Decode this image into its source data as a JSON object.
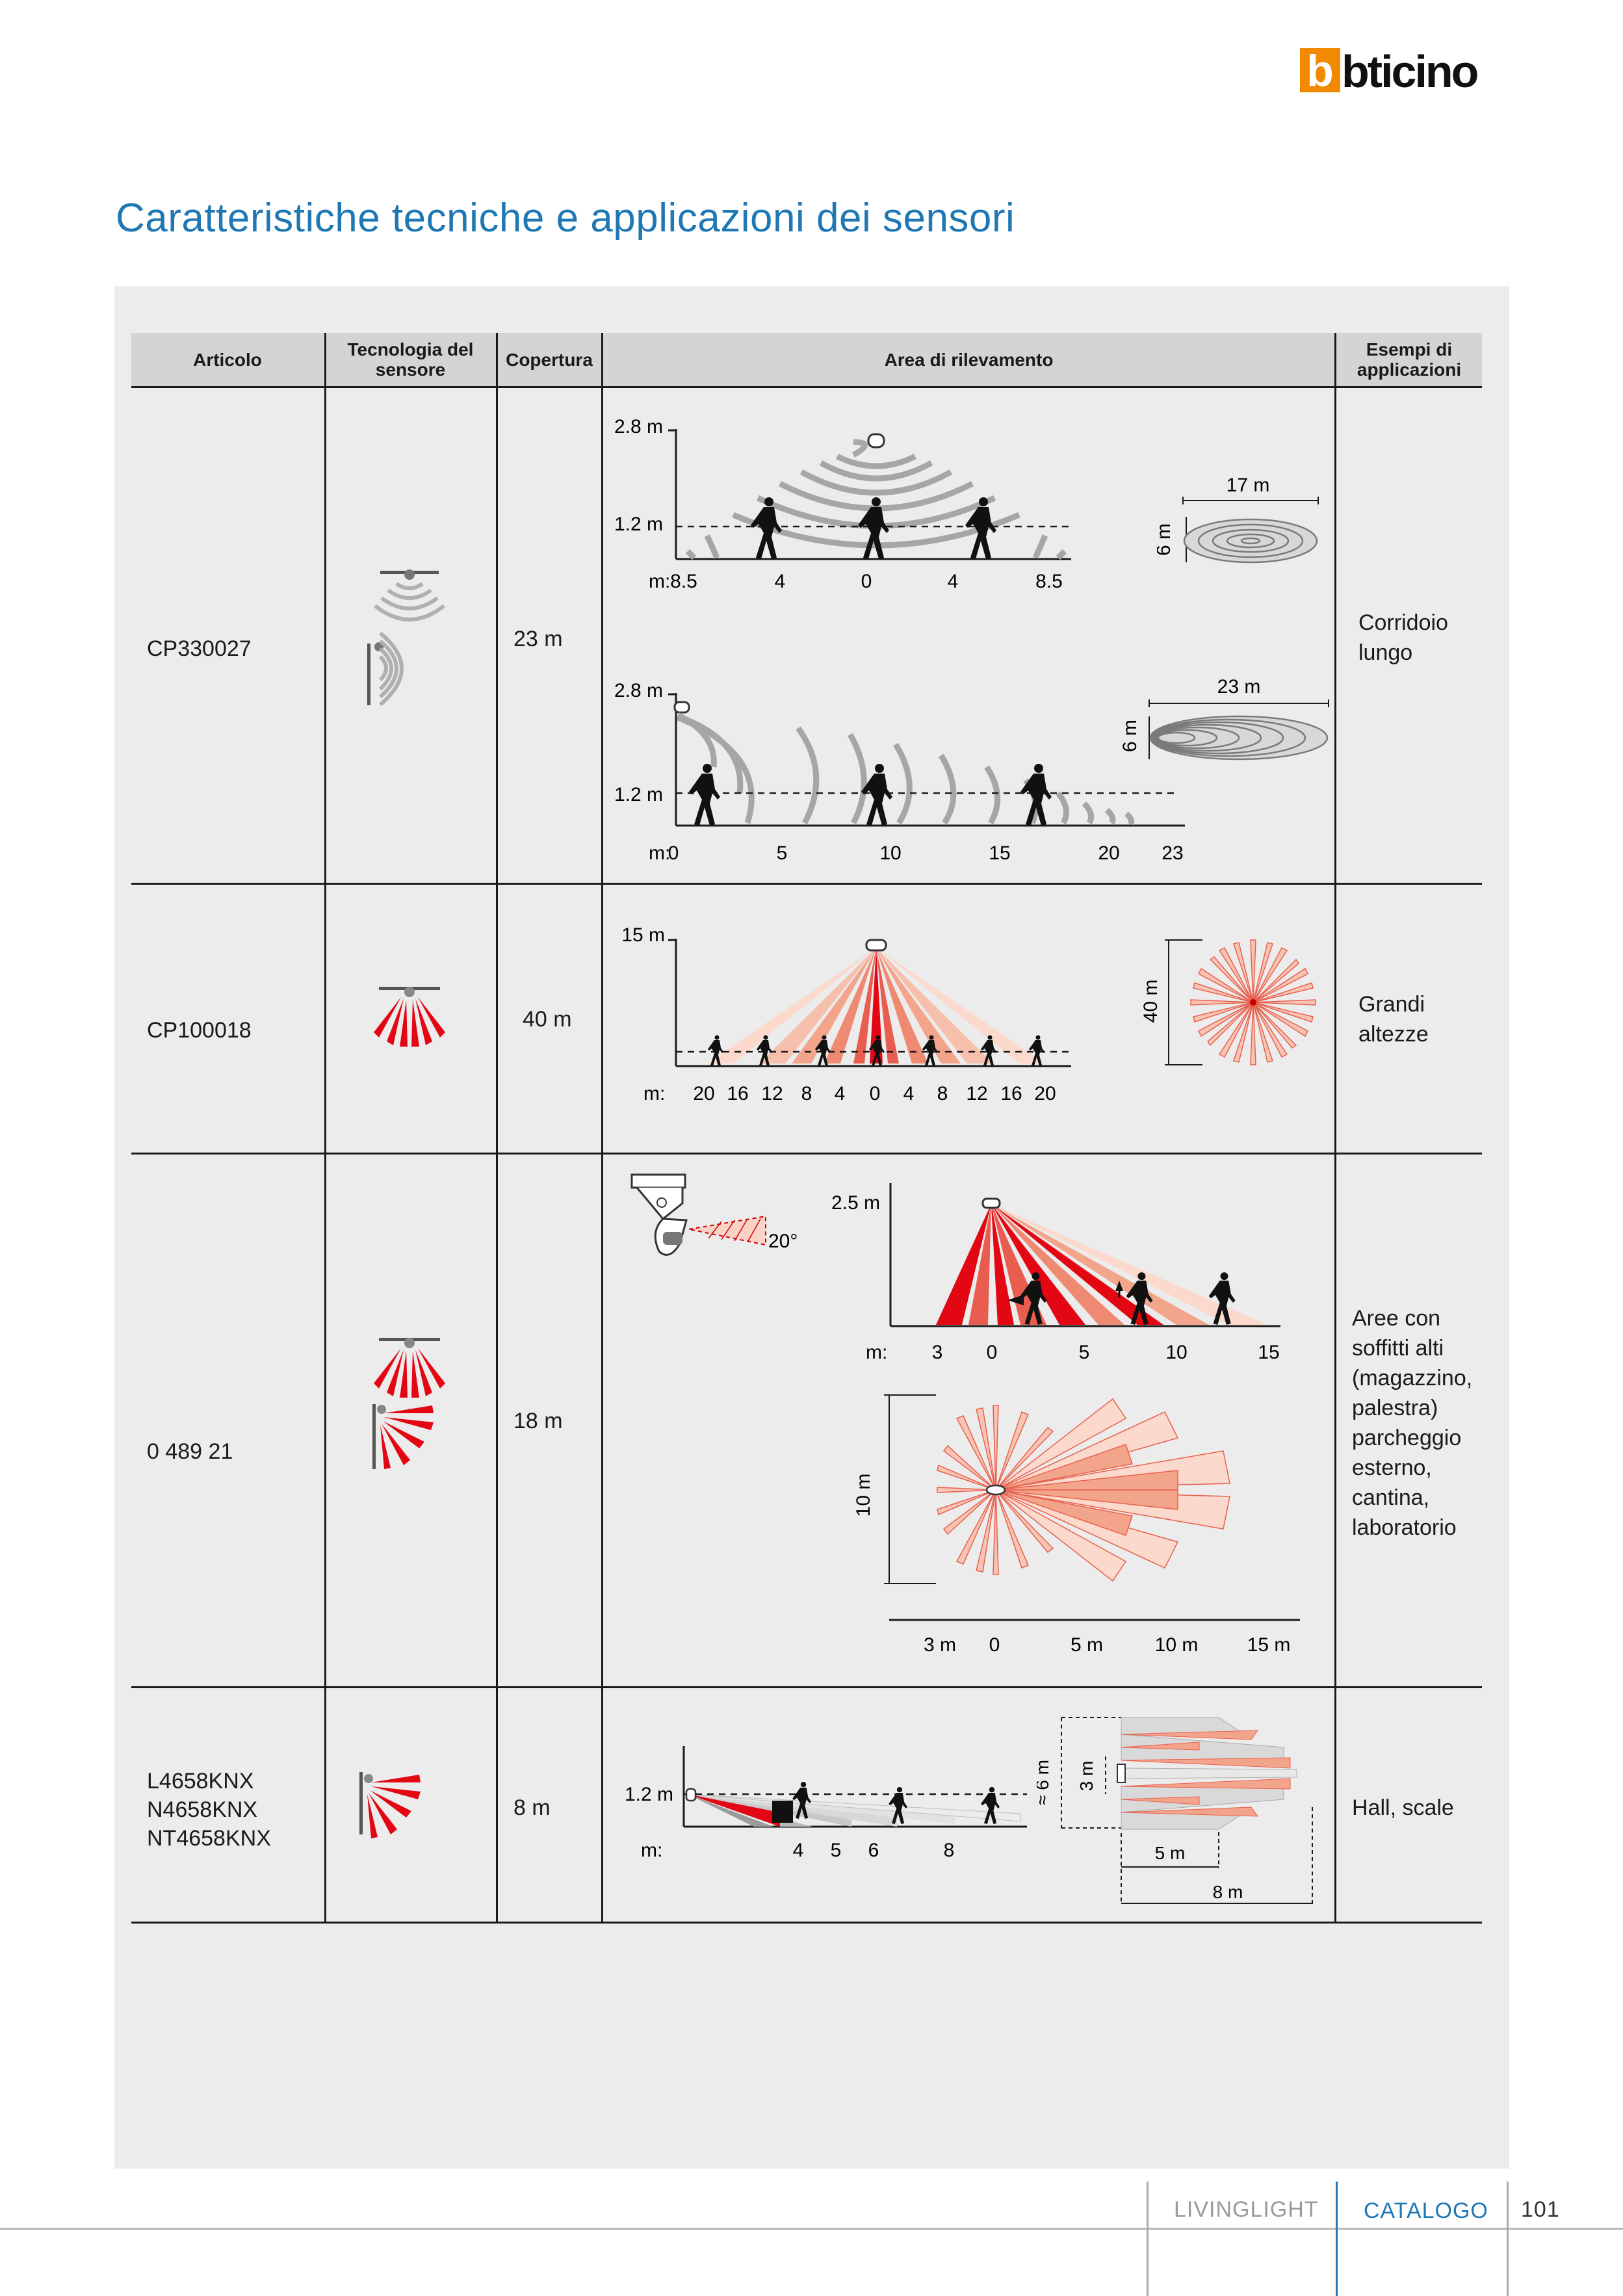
{
  "brand": {
    "logo_text": "bticino"
  },
  "page_title": "Caratteristiche tecniche e applicazioni dei sensori",
  "table": {
    "headers": {
      "articolo": "Articolo",
      "tecnologia": "Tecnologia del sensore",
      "copertura": "Copertura",
      "area": "Area di rilevamento",
      "esempi": "Esempi di applicazioni"
    },
    "rows": [
      {
        "articolo": "CP330027",
        "copertura": "23 m",
        "esempi": "Corridoio lungo",
        "technology_icon": "ultrasonic-sensor-icon"
      },
      {
        "articolo": "CP100018",
        "copertura": "40 m",
        "esempi": "Grandi altezze",
        "technology_icon": "pir-ceiling-sensor-icon"
      },
      {
        "articolo": "0 489 21",
        "copertura": "18 m",
        "esempi": "Aree con soffitti alti (magazzino, palestra) parcheggio esterno, cantina, laboratorio",
        "technology_icon": "pir-dual-sensor-icon"
      },
      {
        "articolo": "L4658KNX N4658KNX NT4658KNX",
        "copertura": "8 m",
        "esempi": "Hall, scale",
        "technology_icon": "pir-wall-sensor-icon"
      }
    ]
  },
  "diagrams": {
    "r1a": {
      "h_top": "2.8 m",
      "h_mid": "1.2 m",
      "axis_prefix": "m:",
      "ticks": [
        "8.5",
        "4",
        "0",
        "4",
        "8.5"
      ],
      "plan_width": "17 m",
      "plan_depth": "6 m"
    },
    "r1b": {
      "h_top": "2.8 m",
      "h_mid": "1.2 m",
      "axis_prefix": "m:",
      "ticks": [
        "0",
        "5",
        "10",
        "15",
        "20",
        "23"
      ],
      "plan_width": "23 m",
      "plan_depth": "6 m"
    },
    "r2": {
      "h_top": "15 m",
      "axis_prefix": "m:",
      "ticks": [
        "20",
        "16",
        "12",
        "8",
        "4",
        "0",
        "4",
        "8",
        "12",
        "16",
        "20"
      ],
      "plan_diam": "40 m"
    },
    "r3": {
      "angle": "20°",
      "h_top": "2.5 m",
      "axis_prefix": "m:",
      "ticks": [
        "3",
        "0",
        "5",
        "10",
        "15"
      ],
      "plan_depth": "10 m",
      "plan_ticks": [
        "3 m",
        "0",
        "5 m",
        "10 m",
        "15 m"
      ]
    },
    "r4": {
      "h_mid": "1.2 m",
      "axis_prefix": "m:",
      "ticks": [
        "4",
        "5",
        "6",
        "8"
      ],
      "plan_depth": "≈ 6 m",
      "plan_inner": "3 m",
      "plan_w1": "5 m",
      "plan_w2": "8 m"
    }
  },
  "colors": {
    "accent": "#e30613",
    "title_blue": "#1f78b4",
    "logo_orange": "#f18a00"
  },
  "footer": {
    "series": "LIVINGLIGHT",
    "section": "CATALOGO",
    "page": "101"
  }
}
